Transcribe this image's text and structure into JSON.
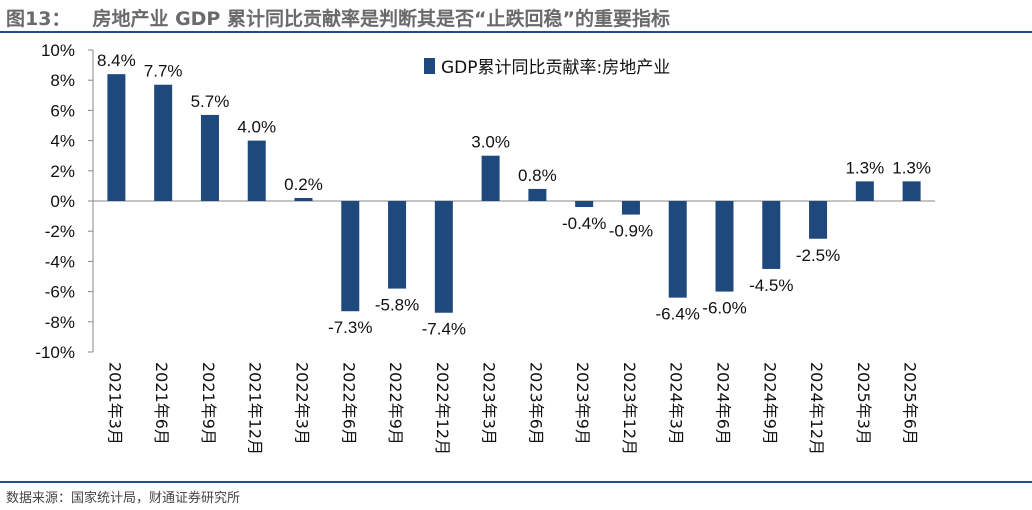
{
  "header": {
    "figure_number": "图13：",
    "title": "房地产业 GDP 累计同比贡献率是判断其是否“止跌回稳”的重要指标"
  },
  "footer": {
    "source": "数据来源：国家统计局，财通证券研究所"
  },
  "colors": {
    "bar": "#1f497d",
    "accent_rule": "#1f4e8c"
  },
  "chart_data": {
    "type": "bar",
    "categories": [
      "2021年3月",
      "2021年6月",
      "2021年9月",
      "2021年12月",
      "2022年3月",
      "2022年6月",
      "2022年9月",
      "2022年12月",
      "2023年3月",
      "2023年6月",
      "2023年9月",
      "2023年12月",
      "2024年3月",
      "2024年6月",
      "2024年9月",
      "2024年12月",
      "2025年3月",
      "2025年6月"
    ],
    "series": [
      {
        "name": "GDP累计同比贡献率:房地产业",
        "values": [
          8.4,
          7.7,
          5.7,
          4.0,
          0.2,
          -7.3,
          -5.8,
          -7.4,
          3.0,
          0.8,
          -0.4,
          -0.9,
          -6.4,
          -6.0,
          -4.5,
          -2.5,
          1.3,
          1.3
        ]
      }
    ],
    "data_labels": [
      "8.4%",
      "7.7%",
      "5.7%",
      "4.0%",
      "0.2%",
      "-7.3%",
      "-5.8%",
      "-7.4%",
      "3.0%",
      "0.8%",
      "-0.4%",
      "-0.9%",
      "-6.4%",
      "-6.0%",
      "-4.5%",
      "-2.5%",
      "1.3%",
      "1.3%"
    ],
    "ylim": [
      -10,
      10
    ],
    "yticks": [
      10,
      8,
      6,
      4,
      2,
      0,
      -2,
      -4,
      -6,
      -8,
      -10
    ],
    "ytick_labels": [
      "10%",
      "8%",
      "6%",
      "4%",
      "2%",
      "0%",
      "-2%",
      "-4%",
      "-6%",
      "-8%",
      "-10%"
    ],
    "grid": false,
    "legend": "top-center"
  }
}
